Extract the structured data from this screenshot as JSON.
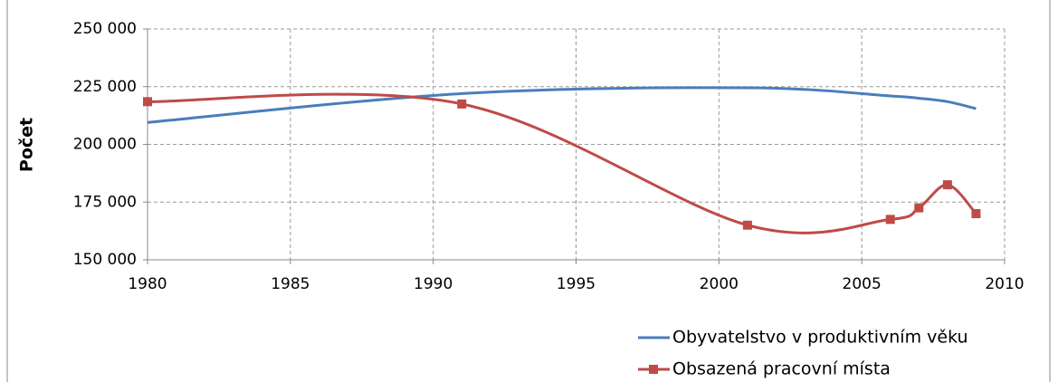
{
  "chart_data": {
    "type": "line",
    "ylabel": "Počet",
    "x": [
      1980,
      1991,
      2001,
      2006,
      2007,
      2008,
      2009
    ],
    "series": [
      {
        "name": "Obyvatelstvo v produktivním věku",
        "color": "#4a7ebb",
        "marker": false,
        "values": [
          209500,
          222000,
          224500,
          221000,
          220000,
          218500,
          215500
        ]
      },
      {
        "name": "Obsazená pracovní místa",
        "color": "#be4b48",
        "marker": true,
        "values": [
          218500,
          217500,
          165000,
          167500,
          172500,
          182500,
          170000
        ]
      }
    ],
    "xlim": [
      1980,
      2010
    ],
    "xticks": [
      1980,
      1985,
      1990,
      1995,
      2000,
      2005,
      2010
    ],
    "ylim": [
      150000,
      250000
    ],
    "yticks": [
      {
        "value": 150000,
        "label": "150 000"
      },
      {
        "value": 175000,
        "label": "175 000"
      },
      {
        "value": 200000,
        "label": "200 000"
      },
      {
        "value": 225000,
        "label": "225 000"
      },
      {
        "value": 250000,
        "label": "250 000"
      }
    ],
    "grid": true,
    "smooth": true,
    "legend": "bottom-right"
  }
}
